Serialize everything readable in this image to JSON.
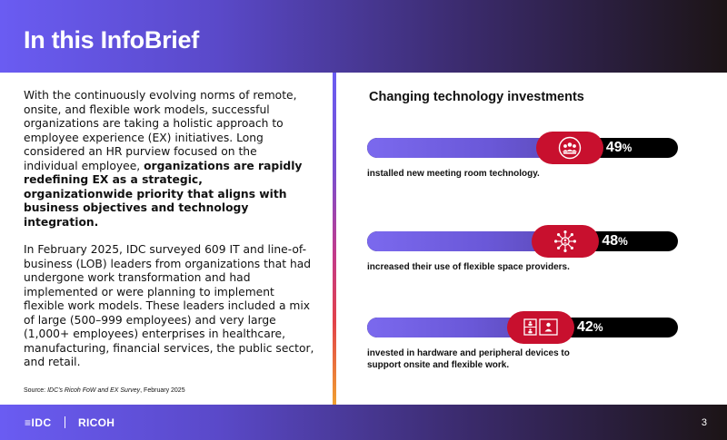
{
  "header": {
    "title": "In this InfoBrief"
  },
  "intro": {
    "p1_plain": "With the continuously evolving norms of remote, onsite, and flexible work models, successful organizations are taking a holistic approach to employee experience (EX) initiatives. Long considered an HR purview focused on the individual employee, ",
    "p1_bold": "organizations are rapidly redefining EX as a strategic, organizationwide priority that aligns with business objectives and technology integration.",
    "p2": "In February 2025, IDC surveyed 609 IT and line-of-business (LOB) leaders from organizations that had undergone work transformation and had implemented or were planning to implement flexible work models. These leaders included a mix of large (500–999 employees) and very large (1,000+ employees) enterprises in healthcare, manufacturing, financial services, the public sector, and retail."
  },
  "source": {
    "prefix": "Source: ",
    "title": "IDC's Ricoh FoW and EX Survey",
    "suffix": ", February 2025"
  },
  "right": {
    "title": "Changing technology investments",
    "stats": [
      {
        "value": "49",
        "unit": "%",
        "percent": 49,
        "icon": "meeting-group-icon",
        "label": "installed new meeting room technology."
      },
      {
        "value": "48",
        "unit": "%",
        "percent": 48,
        "icon": "network-people-icon",
        "label": "increased their use of flexible space providers."
      },
      {
        "value": "42",
        "unit": "%",
        "percent": 42,
        "icon": "devices-icon",
        "label": "invested in hardware and peripheral devices to support onsite and flexible work."
      }
    ]
  },
  "footer": {
    "logo_idc": "≡IDC",
    "logo_ricoh": "RICOH",
    "page": "3"
  },
  "colors": {
    "accent_red": "#c8102e",
    "bar_purple": "#6a58d8",
    "bar_black": "#000000"
  }
}
